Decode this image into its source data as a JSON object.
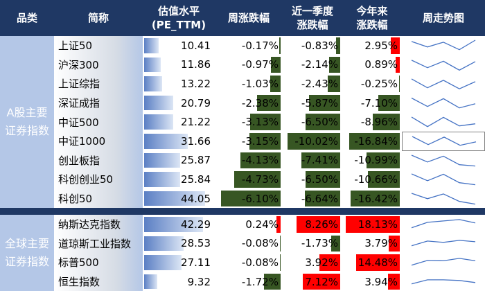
{
  "headers": {
    "category": "品类",
    "name": "简称",
    "pe_line1": "估值水平",
    "pe_line2": "(PE_TTM)",
    "week": "周涨跌幅",
    "quarter_line1": "近一季度",
    "quarter_line2": "涨跌幅",
    "ytd_line1": "今年来",
    "ytd_line2": "涨跌幅",
    "trend": "周走势图"
  },
  "groups": [
    {
      "label_line1": "A股主要",
      "label_line2": "证券指数",
      "rows": [
        {
          "name": "上证50",
          "pe": "10.41",
          "week": "-0.17%",
          "quarter": "-0.83%",
          "ytd": "2.95%",
          "pe_num": 10.41,
          "week_num": -0.17,
          "quarter_num": -0.83,
          "ytd_num": 2.95,
          "trend": [
            3.2,
            1.6,
            3.0,
            0.8,
            3.6
          ]
        },
        {
          "name": "沪深300",
          "pe": "11.86",
          "week": "-0.97%",
          "quarter": "-2.14%",
          "ytd": "0.89%",
          "pe_num": 11.86,
          "week_num": -0.97,
          "quarter_num": -2.14,
          "ytd_num": 0.89,
          "trend": [
            3.4,
            1.2,
            3.1,
            0.5,
            3.0
          ]
        },
        {
          "name": "上证综指",
          "pe": "13.22",
          "week": "-1.03%",
          "quarter": "-2.43%",
          "ytd": "-0.25%",
          "pe_num": 13.22,
          "week_num": -1.03,
          "quarter_num": -2.43,
          "ytd_num": -0.25,
          "trend": [
            3.4,
            0.8,
            3.0,
            0.5,
            2.6
          ]
        },
        {
          "name": "深证成指",
          "pe": "20.79",
          "week": "-2.38%",
          "quarter": "-5.87%",
          "ytd": "-7.10%",
          "pe_num": 20.79,
          "week_num": -2.38,
          "quarter_num": -5.87,
          "ytd_num": -7.1,
          "trend": [
            3.5,
            1.0,
            3.3,
            0.6,
            1.8
          ]
        },
        {
          "name": "中证500",
          "pe": "21.22",
          "week": "-3.13%",
          "quarter": "-6.50%",
          "ytd": "-8.96%",
          "pe_num": 21.22,
          "week_num": -3.13,
          "quarter_num": -6.5,
          "ytd_num": -8.96,
          "trend": [
            3.4,
            0.6,
            3.3,
            0.8,
            1.4
          ]
        },
        {
          "name": "中证1000",
          "pe": "31.66",
          "week": "-3.15%",
          "quarter": "-10.02%",
          "ytd": "-16.84%",
          "pe_num": 31.66,
          "week_num": -3.15,
          "quarter_num": -10.02,
          "ytd_num": -16.84,
          "trend": [
            3.6,
            1.2,
            3.4,
            1.0,
            2.0
          ]
        },
        {
          "name": "创业板指",
          "pe": "25.87",
          "week": "-4.13%",
          "quarter": "-7.41%",
          "ytd": "-10.99%",
          "pe_num": 25.87,
          "week_num": -4.13,
          "quarter_num": -7.41,
          "ytd_num": -10.99,
          "trend": [
            3.6,
            1.6,
            3.3,
            0.8,
            0.4
          ]
        },
        {
          "name": "科创创业50",
          "pe": "25.84",
          "week": "-4.73%",
          "quarter": "-6.50%",
          "ytd": "-10.66%",
          "pe_num": 25.84,
          "week_num": -4.73,
          "quarter_num": -6.5,
          "ytd_num": -10.66,
          "trend": [
            3.6,
            1.6,
            3.5,
            1.0,
            0.4
          ]
        },
        {
          "name": "科创50",
          "pe": "44.05",
          "week": "-6.10%",
          "quarter": "-6.64%",
          "ytd": "-16.42%",
          "pe_num": 44.05,
          "week_num": -6.1,
          "quarter_num": -6.64,
          "ytd_num": -16.42,
          "trend": [
            3.6,
            2.0,
            3.4,
            1.2,
            0.4
          ]
        }
      ]
    },
    {
      "label_line1": "全球主要",
      "label_line2": "证券指数",
      "rows": [
        {
          "name": "纳斯达克指数",
          "pe": "42.29",
          "week": "0.24%",
          "quarter": "8.26%",
          "ytd": "18.13%",
          "pe_num": 42.29,
          "week_num": 0.24,
          "quarter_num": 8.26,
          "ytd_num": 18.13,
          "trend": [
            1.0,
            2.6,
            3.0,
            3.4,
            2.4
          ]
        },
        {
          "name": "道琼斯工业指数",
          "pe": "28.53",
          "week": "-0.08%",
          "quarter": "-1.73%",
          "ytd": "3.79%",
          "pe_num": 28.53,
          "week_num": -0.08,
          "quarter_num": -1.73,
          "ytd_num": 3.79,
          "trend": [
            1.4,
            2.8,
            2.4,
            3.0,
            2.6
          ]
        },
        {
          "name": "标普500",
          "pe": "27.11",
          "week": "-0.08%",
          "quarter": "3.92%",
          "ytd": "14.48%",
          "pe_num": 27.11,
          "week_num": -0.08,
          "quarter_num": 3.92,
          "ytd_num": 14.48,
          "trend": [
            1.2,
            2.6,
            2.5,
            3.2,
            2.5
          ]
        },
        {
          "name": "恒生指数",
          "pe": "9.32",
          "week": "-1.72%",
          "quarter": "7.12%",
          "ytd": "3.94%",
          "pe_num": 9.32,
          "week_num": -1.72,
          "quarter_num": 7.12,
          "ytd_num": 3.94,
          "trend": [
            1.4,
            2.6,
            2.6,
            2.4,
            1.8
          ]
        }
      ]
    }
  ],
  "colors": {
    "header_bg": "#1f3864",
    "category_bg": "#b4c7e7",
    "negative_bar": "#375623",
    "positive_bar": "#ff0000",
    "pe_bar": "#5b7fc4",
    "sparkline": "#4472c4"
  }
}
